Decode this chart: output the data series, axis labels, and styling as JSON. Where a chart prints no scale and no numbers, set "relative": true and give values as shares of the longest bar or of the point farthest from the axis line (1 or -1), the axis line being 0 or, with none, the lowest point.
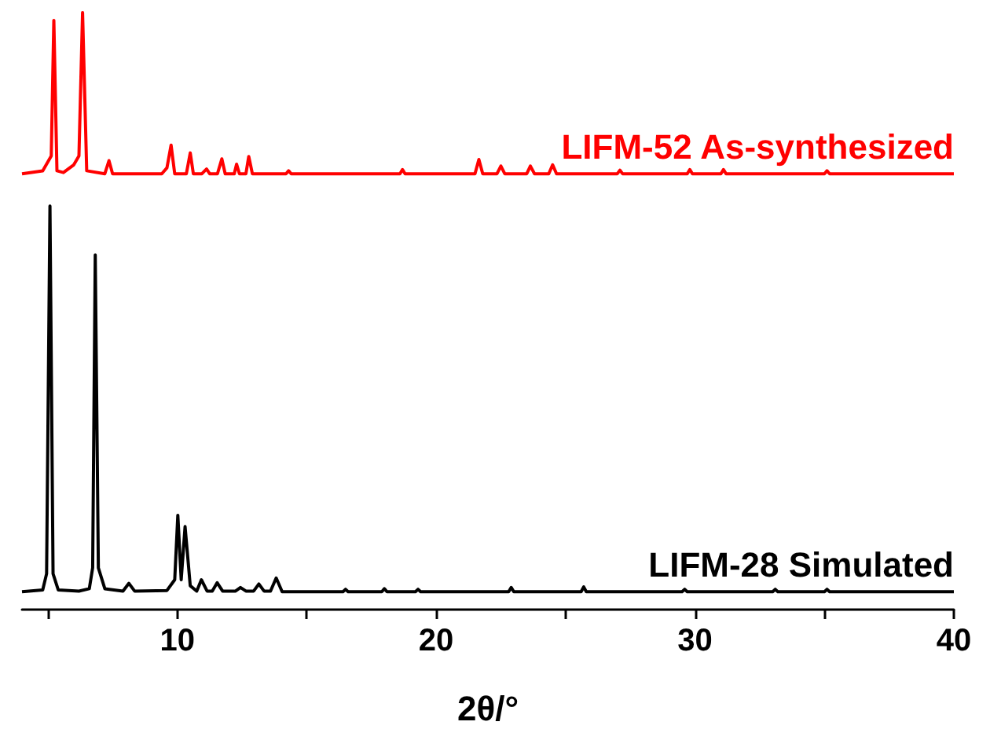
{
  "chart_data": {
    "type": "line",
    "relative": true,
    "xlabel": "2θ/°",
    "xlim": [
      4,
      40
    ],
    "xticks": [
      {
        "value": 5,
        "label": null
      },
      10,
      {
        "value": 15,
        "label": null
      },
      20,
      {
        "value": 25,
        "label": null
      },
      30,
      {
        "value": 35,
        "label": null
      },
      40
    ],
    "series": [
      {
        "name": "LIFM-52 As-synthesized",
        "color": "#ff0000",
        "x": [
          4,
          4.8,
          5.0,
          5.13,
          5.23,
          5.35,
          5.6,
          6.0,
          6.2,
          6.34,
          6.5,
          7.2,
          7.36,
          7.5,
          9.4,
          9.6,
          9.76,
          9.9,
          10.35,
          10.5,
          10.62,
          10.95,
          11.13,
          11.25,
          11.55,
          11.72,
          11.85,
          12.2,
          12.29,
          12.4,
          12.65,
          12.76,
          12.9,
          14.2,
          14.3,
          14.4,
          18.6,
          18.7,
          18.8,
          21.5,
          21.65,
          21.8,
          22.35,
          22.5,
          22.65,
          23.5,
          23.64,
          23.8,
          24.35,
          24.5,
          24.65,
          27,
          27.1,
          27.2,
          29.7,
          29.8,
          29.9,
          31,
          31.1,
          31.2,
          35,
          35.1,
          35.2,
          40
        ],
        "values": [
          0.73,
          0.735,
          0.75,
          0.76,
          0.987,
          0.735,
          0.732,
          0.745,
          0.76,
          1,
          0.735,
          0.73,
          0.752,
          0.73,
          0.73,
          0.74,
          0.778,
          0.73,
          0.73,
          0.765,
          0.73,
          0.73,
          0.738,
          0.73,
          0.73,
          0.755,
          0.73,
          0.73,
          0.746,
          0.73,
          0.73,
          0.759,
          0.73,
          0.73,
          0.735,
          0.73,
          0.73,
          0.737,
          0.73,
          0.73,
          0.754,
          0.73,
          0.73,
          0.743,
          0.73,
          0.73,
          0.743,
          0.73,
          0.73,
          0.745,
          0.73,
          0.73,
          0.736,
          0.73,
          0.73,
          0.737,
          0.73,
          0.73,
          0.737,
          0.73,
          0.73,
          0.735,
          0.73,
          0.73
        ]
      },
      {
        "name": "LIFM-28 Simulated",
        "color": "#000000",
        "x": [
          4,
          4.8,
          4.95,
          5.08,
          5.2,
          5.4,
          6.2,
          6.6,
          6.73,
          6.83,
          6.95,
          7.2,
          7.9,
          8.13,
          8.35,
          9.6,
          9.9,
          10.02,
          10.15,
          10.3,
          10.5,
          10.75,
          10.93,
          11.15,
          11.35,
          11.54,
          11.75,
          12.25,
          12.44,
          12.65,
          12.95,
          13.15,
          13.35,
          13.6,
          13.82,
          14.05,
          16.4,
          16.5,
          16.6,
          17.9,
          18.0,
          18.1,
          19.2,
          19.3,
          19.4,
          22.8,
          22.9,
          23.0,
          25.6,
          25.7,
          25.8,
          29.5,
          29.6,
          29.7,
          33,
          33.1,
          33.2,
          35,
          35.1,
          35.2,
          40
        ],
        "values": [
          0.03,
          0.033,
          0.06,
          0.676,
          0.06,
          0.033,
          0.031,
          0.035,
          0.07,
          0.594,
          0.07,
          0.035,
          0.031,
          0.044,
          0.031,
          0.032,
          0.05,
          0.158,
          0.05,
          0.139,
          0.04,
          0.031,
          0.05,
          0.031,
          0.031,
          0.045,
          0.031,
          0.031,
          0.037,
          0.031,
          0.031,
          0.043,
          0.031,
          0.031,
          0.053,
          0.03,
          0.03,
          0.034,
          0.03,
          0.03,
          0.035,
          0.03,
          0.03,
          0.034,
          0.03,
          0.03,
          0.037,
          0.03,
          0.03,
          0.038,
          0.03,
          0.03,
          0.034,
          0.03,
          0.03,
          0.034,
          0.03,
          0.03,
          0.034,
          0.03,
          0.03
        ]
      }
    ]
  }
}
